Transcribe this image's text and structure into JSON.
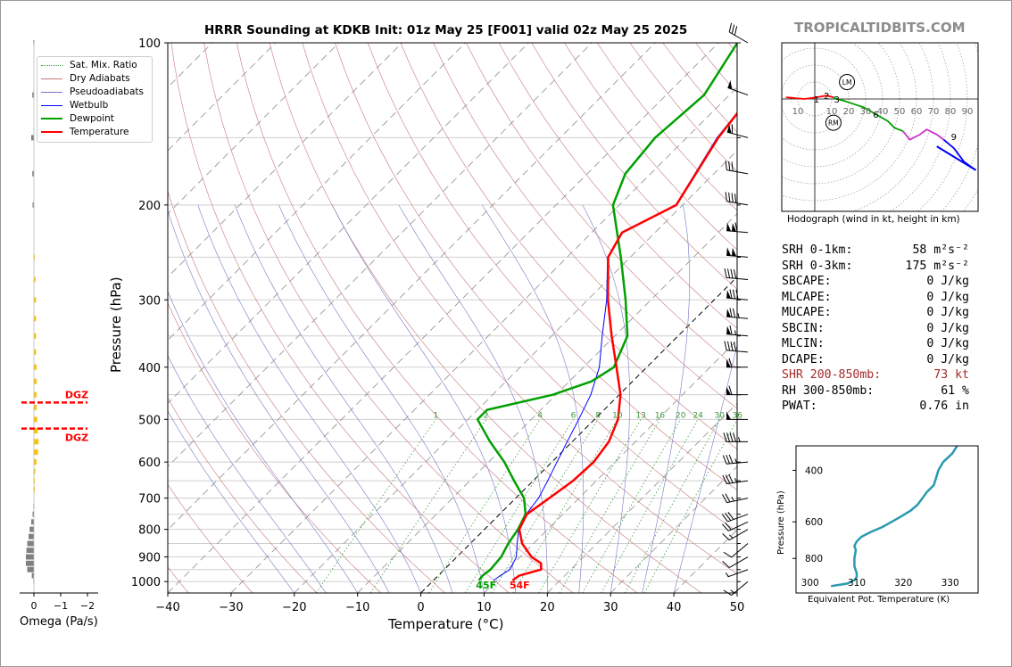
{
  "title": "HRRR Sounding at KDKB Init: 01z May 25 [F001] valid 02z May 25 2025",
  "brand": "TROPICALTIDBITS.COM",
  "chart_data": [
    {
      "type": "line",
      "name": "skew-t",
      "xlabel": "Temperature (°C)",
      "ylabel": "Pressure (hPa)",
      "xlim": [
        -40,
        50
      ],
      "ylim": [
        1050,
        100
      ],
      "y_scale": "log",
      "x_ticks": [
        "−40",
        "−30",
        "−20",
        "−10",
        "0",
        "10",
        "20",
        "30",
        "40",
        "50"
      ],
      "y_ticks": [
        1000,
        900,
        800,
        700,
        600,
        500,
        400,
        300,
        200,
        100
      ],
      "legend_position": "top-left",
      "legend": [
        "Sat. Mix. Ratio",
        "Dry Adiabats",
        "Pseudoadiabats",
        "Wetbulb",
        "Dewpoint",
        "Temperature"
      ],
      "mixing_ratio_labels": [
        "1",
        "2",
        "4",
        "6",
        "8",
        "10",
        "13",
        "16",
        "20",
        "24",
        "30",
        "36"
      ],
      "colors": {
        "temperature": "#ff0000",
        "dewpoint": "#00a000",
        "wetbulb": "#0000ff",
        "dry": "#c87878",
        "moist": "#7878c8",
        "mix": "#3a9a3a"
      },
      "surface_labels": {
        "dewpoint": "45F",
        "temperature": "54F"
      },
      "series": [
        {
          "name": "Temperature",
          "points": [
            [
              995,
              12.5
            ],
            [
              975,
              12.8
            ],
            [
              950,
              15.3
            ],
            [
              925,
              14.3
            ],
            [
              900,
              11.8
            ],
            [
              850,
              8.2
            ],
            [
              800,
              5.5
            ],
            [
              750,
              4.3
            ],
            [
              700,
              5.3
            ],
            [
              650,
              6.3
            ],
            [
              600,
              6.6
            ],
            [
              550,
              5.8
            ],
            [
              500,
              3.7
            ],
            [
              450,
              0.2
            ],
            [
              400,
              -4.8
            ],
            [
              350,
              -10.5
            ],
            [
              300,
              -16.8
            ],
            [
              250,
              -23.5
            ],
            [
              225,
              -25.2
            ],
            [
              200,
              -21.0
            ],
            [
              150,
              -25.0
            ],
            [
              125,
              -26.5
            ],
            [
              100,
              -28.0
            ]
          ]
        },
        {
          "name": "Dewpoint",
          "points": [
            [
              995,
              7.2
            ],
            [
              975,
              7.0
            ],
            [
              950,
              7.3
            ],
            [
              900,
              7.0
            ],
            [
              850,
              6.0
            ],
            [
              800,
              5.3
            ],
            [
              750,
              4.1
            ],
            [
              700,
              1.3
            ],
            [
              650,
              -3.0
            ],
            [
              600,
              -7.5
            ],
            [
              550,
              -13.0
            ],
            [
              500,
              -18.5
            ],
            [
              480,
              -18.5
            ],
            [
              450,
              -10.5
            ],
            [
              425,
              -6.5
            ],
            [
              400,
              -5.2
            ],
            [
              350,
              -8.0
            ],
            [
              300,
              -14.0
            ],
            [
              250,
              -21.5
            ],
            [
              225,
              -26.0
            ],
            [
              200,
              -31.0
            ],
            [
              175,
              -34.0
            ],
            [
              150,
              -35.0
            ],
            [
              125,
              -34.0
            ],
            [
              100,
              -37.0
            ]
          ]
        },
        {
          "name": "Wetbulb",
          "points": [
            [
              995,
              9.5
            ],
            [
              975,
              9.8
            ],
            [
              950,
              10.4
            ],
            [
              900,
              9.4
            ],
            [
              850,
              7.4
            ],
            [
              800,
              5.4
            ],
            [
              750,
              4.2
            ],
            [
              700,
              3.6
            ],
            [
              650,
              2.3
            ],
            [
              600,
              0.8
            ],
            [
              550,
              -0.8
            ],
            [
              500,
              -2.5
            ],
            [
              450,
              -4.5
            ],
            [
              400,
              -7.5
            ],
            [
              350,
              -12.0
            ],
            [
              300,
              -17.0
            ],
            [
              250,
              -23.6
            ],
            [
              225,
              -25.3
            ],
            [
              200,
              -21.1
            ],
            [
              150,
              -25.2
            ],
            [
              100,
              -28.2
            ]
          ]
        }
      ]
    },
    {
      "type": "bar",
      "name": "omega",
      "xlabel": "Omega (Pa/s)",
      "x_ticks": [
        "0",
        "−1",
        "−2"
      ],
      "xlim": [
        0,
        -2
      ],
      "dgz_label": "DGZ",
      "dgz_levels": [
        460,
        520
      ],
      "levels": [
        1000,
        975,
        950,
        925,
        900,
        875,
        850,
        825,
        800,
        775,
        750,
        725,
        700,
        675,
        650,
        625,
        600,
        575,
        550,
        525,
        500,
        475,
        450,
        425,
        400,
        375,
        350,
        325,
        300,
        275,
        250,
        200,
        175,
        150,
        125,
        100
      ],
      "values": [
        0.02,
        0.08,
        0.25,
        0.3,
        0.3,
        0.28,
        0.25,
        0.2,
        0.16,
        0.1,
        0.05,
        0.02,
        0.0,
        -0.01,
        -0.02,
        -0.05,
        -0.1,
        -0.15,
        -0.17,
        -0.14,
        -0.12,
        -0.1,
        -0.1,
        -0.1,
        -0.1,
        -0.08,
        -0.08,
        -0.08,
        -0.08,
        -0.06,
        -0.02,
        0.05,
        0.06,
        0.1,
        0.06,
        0.02
      ],
      "colors": {
        "sinking": "#808080",
        "dgz": "#ffc000",
        "dgz_line": "#ff0000"
      }
    },
    {
      "type": "line",
      "name": "hodograph",
      "caption": "Hodograph (wind in kt, height in km)",
      "ring_labels": [
        "10",
        "10",
        "20",
        "30",
        "40",
        "50",
        "60",
        "70",
        "80",
        "90"
      ],
      "height_labels": [
        "1",
        "2",
        "3",
        "6",
        "9"
      ],
      "markers": [
        "LM",
        "RM"
      ],
      "points_kt": [
        [
          -17,
          1
        ],
        [
          -6,
          0
        ],
        [
          1,
          1
        ],
        [
          7,
          2
        ],
        [
          11,
          1
        ],
        [
          13,
          0
        ],
        [
          17,
          -1
        ],
        [
          23,
          -3
        ],
        [
          29,
          -5
        ],
        [
          36,
          -9
        ],
        [
          43,
          -13
        ],
        [
          47,
          -17
        ],
        [
          52,
          -19
        ],
        [
          56,
          -24
        ],
        [
          62,
          -21
        ],
        [
          66,
          -18
        ],
        [
          72,
          -21
        ],
        [
          76,
          -24
        ],
        [
          82,
          -29
        ],
        [
          88,
          -37
        ],
        [
          95,
          -42
        ],
        [
          72,
          -28
        ]
      ],
      "segments": [
        {
          "color": "#ff0000",
          "from": 0,
          "to": 4
        },
        {
          "color": "#00a000",
          "from": 4,
          "to": 12
        },
        {
          "color": "#cc33cc",
          "from": 12,
          "to": 17
        },
        {
          "color": "#0000ff",
          "from": 17,
          "to": 21
        }
      ]
    },
    {
      "type": "line",
      "name": "theta-e",
      "xlabel": "Equivalent Pot. Temperature (K)",
      "ylabel": "Pressure (hPa)",
      "xlim": [
        297,
        336
      ],
      "ylim": [
        1050,
        330
      ],
      "x_ticks": [
        "300",
        "310",
        "320",
        "330"
      ],
      "y_ticks": [
        "400",
        "600",
        "800"
      ],
      "color": "#2a9ab0",
      "points": [
        [
          995,
          304.5
        ],
        [
          975,
          308.0
        ],
        [
          950,
          309.5
        ],
        [
          925,
          310.0
        ],
        [
          900,
          310.0
        ],
        [
          850,
          309.5
        ],
        [
          800,
          309.5
        ],
        [
          750,
          309.8
        ],
        [
          725,
          309.5
        ],
        [
          700,
          310.0
        ],
        [
          675,
          311.0
        ],
        [
          650,
          313.0
        ],
        [
          625,
          315.5
        ],
        [
          600,
          317.5
        ],
        [
          575,
          319.5
        ],
        [
          550,
          321.5
        ],
        [
          525,
          323.0
        ],
        [
          500,
          324.0
        ],
        [
          475,
          325.0
        ],
        [
          450,
          326.5
        ],
        [
          425,
          327.0
        ],
        [
          400,
          327.5
        ],
        [
          375,
          328.5
        ],
        [
          350,
          330.5
        ],
        [
          330,
          331.5
        ]
      ]
    }
  ],
  "indices": [
    {
      "label": "SRH 0-1km:",
      "value": "58 m²s⁻²",
      "highlight": false
    },
    {
      "label": "SRH 0-3km:",
      "value": "175 m²s⁻²",
      "highlight": false
    },
    {
      "label": "SBCAPE:",
      "value": "0 J/kg",
      "highlight": false
    },
    {
      "label": "MLCAPE:",
      "value": "0 J/kg",
      "highlight": false
    },
    {
      "label": "MUCAPE:",
      "value": "0 J/kg",
      "highlight": false
    },
    {
      "label": "SBCIN:",
      "value": "0 J/kg",
      "highlight": false
    },
    {
      "label": "MLCIN:",
      "value": "0 J/kg",
      "highlight": false
    },
    {
      "label": "DCAPE:",
      "value": "0 J/kg",
      "highlight": false
    },
    {
      "label": "SHR 200-850mb:",
      "value": "73 kt",
      "highlight": true
    },
    {
      "label": "RH 300-850mb:",
      "value": "61 %",
      "highlight": false
    },
    {
      "label": "PWAT:",
      "value": "0.76 in",
      "highlight": false
    }
  ],
  "barbs": [
    {
      "p": 100,
      "speed": 30,
      "dir": 300
    },
    {
      "p": 125,
      "speed": 50,
      "dir": 290
    },
    {
      "p": 150,
      "speed": 60,
      "dir": 285
    },
    {
      "p": 175,
      "speed": 30,
      "dir": 280
    },
    {
      "p": 200,
      "speed": 40,
      "dir": 280
    },
    {
      "p": 225,
      "speed": 110,
      "dir": 275
    },
    {
      "p": 250,
      "speed": 100,
      "dir": 275
    },
    {
      "p": 275,
      "speed": 40,
      "dir": 275
    },
    {
      "p": 300,
      "speed": 80,
      "dir": 275
    },
    {
      "p": 325,
      "speed": 75,
      "dir": 275
    },
    {
      "p": 350,
      "speed": 65,
      "dir": 275
    },
    {
      "p": 375,
      "speed": 40,
      "dir": 275
    },
    {
      "p": 400,
      "speed": 60,
      "dir": 270
    },
    {
      "p": 450,
      "speed": 60,
      "dir": 270
    },
    {
      "p": 500,
      "speed": 50,
      "dir": 270
    },
    {
      "p": 550,
      "speed": 45,
      "dir": 270
    },
    {
      "p": 600,
      "speed": 35,
      "dir": 265
    },
    {
      "p": 650,
      "speed": 35,
      "dir": 262
    },
    {
      "p": 700,
      "speed": 25,
      "dir": 258
    },
    {
      "p": 750,
      "speed": 30,
      "dir": 250
    },
    {
      "p": 775,
      "speed": 20,
      "dir": 245
    },
    {
      "p": 800,
      "speed": 15,
      "dir": 240
    },
    {
      "p": 850,
      "speed": 10,
      "dir": 230
    },
    {
      "p": 900,
      "speed": 10,
      "dir": 240
    },
    {
      "p": 950,
      "speed": 5,
      "dir": 250
    },
    {
      "p": 1000,
      "speed": 15,
      "dir": 230
    }
  ]
}
